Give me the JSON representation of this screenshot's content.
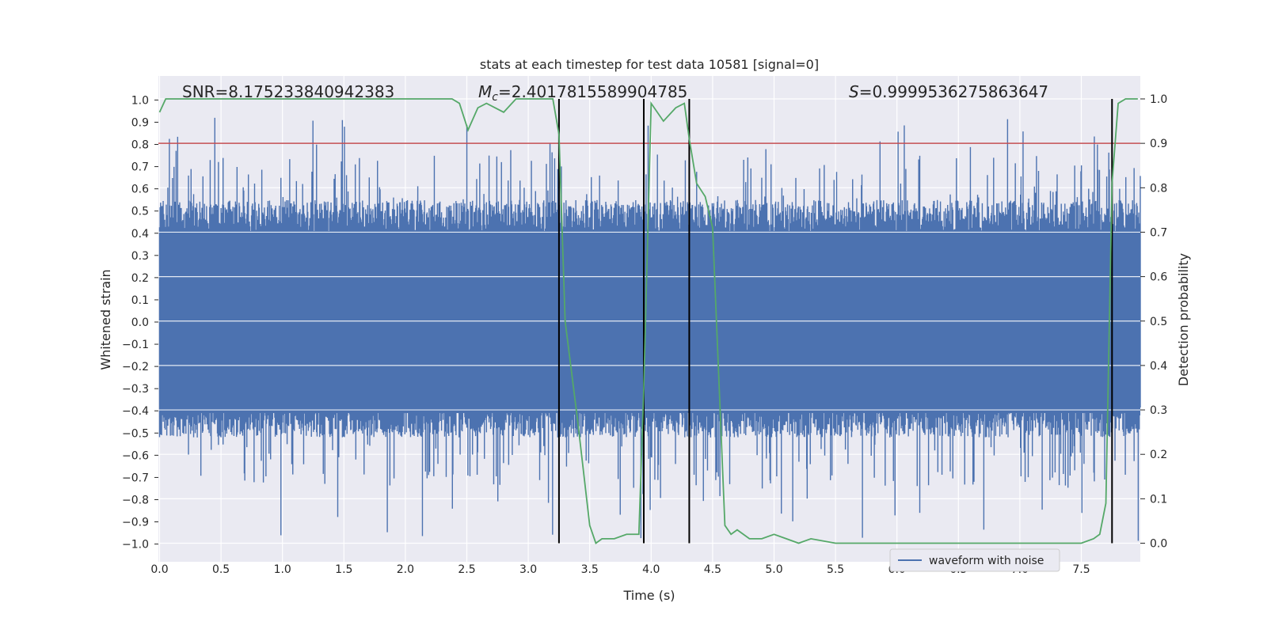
{
  "chart_data": {
    "type": "line",
    "title": "stats at each timestep for test data 10581 [signal=0]",
    "xlabel": "Time (s)",
    "ylabel": "Whitened strain",
    "y2label": "Detection probability",
    "xlim": [
      0.0,
      8.0
    ],
    "ylim": [
      -1.1,
      1.05
    ],
    "y2lim": [
      -0.047,
      1.045
    ],
    "xticks": [
      "0.0",
      "0.5",
      "1.0",
      "1.5",
      "2.0",
      "2.5",
      "3.0",
      "3.5",
      "4.0",
      "4.5",
      "5.0",
      "5.5",
      "6.0",
      "6.5",
      "7.0",
      "7.5"
    ],
    "yticks": [
      "1.0",
      "0.9",
      "0.8",
      "0.7",
      "0.6",
      "0.5",
      "0.4",
      "0.3",
      "0.2",
      "0.1",
      "0.0",
      "−0.1",
      "−0.2",
      "−0.3",
      "−0.4",
      "−0.5",
      "−0.6",
      "−0.7",
      "−0.8",
      "−0.9",
      "−1.0"
    ],
    "y2ticks": [
      "1.0",
      "0.9",
      "0.8",
      "0.7",
      "0.6",
      "0.5",
      "0.4",
      "0.3",
      "0.2",
      "0.1",
      "0.0"
    ],
    "stats": {
      "snr_label": "SNR=8.175233840942383",
      "mc_symbol": "M",
      "mc_sub": "c",
      "mc_value": "=2.4017815589904785",
      "s_symbol": "S",
      "s_value": "=0.9999536275863647"
    },
    "threshold": {
      "value": 0.9,
      "axis": "right",
      "color": "#c44e52"
    },
    "vertical_lines_x": [
      3.25,
      3.94,
      4.31,
      7.75
    ],
    "waveform": {
      "name": "waveform with noise",
      "color": "#4c72b0",
      "typical_envelope": [
        -0.52,
        0.55
      ],
      "peak_max": 0.92,
      "peak_min": -0.99,
      "n_samples": 1900
    },
    "detection_probability": {
      "color": "#55a868",
      "x": [
        0.0,
        0.05,
        0.1,
        0.2,
        0.3,
        0.5,
        0.8,
        1.0,
        1.5,
        2.0,
        2.2,
        2.38,
        2.44,
        2.51,
        2.59,
        2.66,
        2.8,
        2.9,
        3.0,
        3.1,
        3.2,
        3.25,
        3.3,
        3.4,
        3.5,
        3.55,
        3.6,
        3.7,
        3.8,
        3.9,
        3.94,
        4.0,
        4.1,
        4.2,
        4.27,
        4.31,
        4.37,
        4.44,
        4.5,
        4.6,
        4.65,
        4.7,
        4.8,
        4.9,
        5.0,
        5.1,
        5.2,
        5.3,
        5.5,
        5.8,
        6.0,
        6.5,
        7.0,
        7.3,
        7.5,
        7.6,
        7.65,
        7.7,
        7.75,
        7.8,
        7.86,
        7.9,
        7.96
      ],
      "y": [
        0.97,
        1.0,
        1.0,
        1.0,
        1.0,
        1.0,
        1.0,
        1.0,
        1.0,
        1.0,
        1.0,
        1.0,
        0.99,
        0.93,
        0.98,
        0.99,
        0.97,
        1.0,
        1.0,
        1.0,
        1.0,
        0.92,
        0.5,
        0.28,
        0.04,
        0.0,
        0.01,
        0.01,
        0.02,
        0.02,
        0.35,
        0.99,
        0.95,
        0.98,
        0.99,
        0.91,
        0.81,
        0.78,
        0.71,
        0.04,
        0.02,
        0.03,
        0.01,
        0.01,
        0.02,
        0.01,
        0.0,
        0.01,
        0.0,
        0.0,
        0.0,
        0.0,
        0.0,
        0.0,
        0.0,
        0.01,
        0.02,
        0.09,
        0.81,
        0.99,
        1.0,
        1.0,
        1.0
      ]
    },
    "legend": {
      "placement": "lower-center-right",
      "label": "waveform with noise"
    }
  }
}
